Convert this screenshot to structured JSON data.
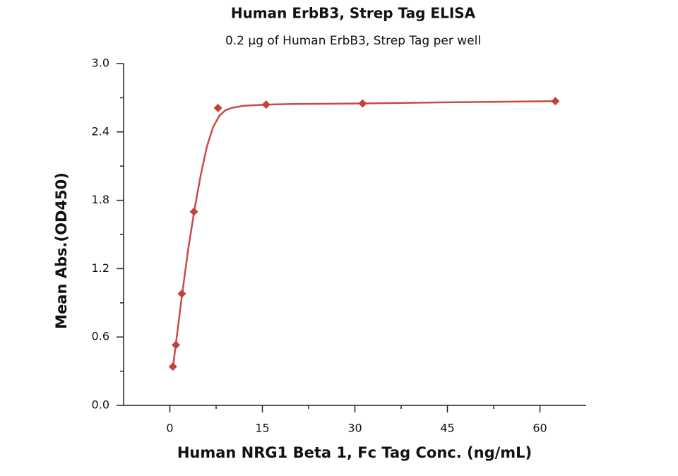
{
  "chart_data": {
    "type": "scatter",
    "title": "Human ErbB3, Strep Tag ELISA",
    "subtitle": "0.2 µg of Human ErbB3, Strep Tag per well",
    "x_label": "Human NRG1 Beta 1, Fc Tag Conc. (ng/mL)",
    "y_label": "Mean Abs.(OD450)",
    "xlim": [
      -7.5,
      67.5
    ],
    "xticks": [
      0,
      15,
      30,
      45,
      60
    ],
    "ylim": [
      0,
      3
    ],
    "yticks": [
      {
        "value": 0,
        "label": "0.0"
      },
      0.6,
      1.2,
      1.8,
      2.4,
      {
        "value": 3,
        "label": "3.0"
      }
    ],
    "color": "#c8403c",
    "x": [
      0.49,
      0.98,
      1.95,
      3.9,
      7.8,
      15.6,
      31.25,
      62.5
    ],
    "values": [
      0.34,
      0.53,
      0.98,
      1.7,
      2.61,
      2.64,
      2.65,
      2.67
    ],
    "fit": {
      "color": "#c84b45",
      "x": [
        0.49,
        1,
        2,
        3,
        4,
        5,
        6,
        7,
        8,
        9,
        10,
        12,
        15.6,
        20,
        31.25,
        45,
        62.5
      ],
      "values": [
        0.33,
        0.55,
        0.98,
        1.38,
        1.72,
        2.02,
        2.27,
        2.44,
        2.54,
        2.59,
        2.61,
        2.63,
        2.64,
        2.645,
        2.65,
        2.66,
        2.67
      ]
    }
  }
}
